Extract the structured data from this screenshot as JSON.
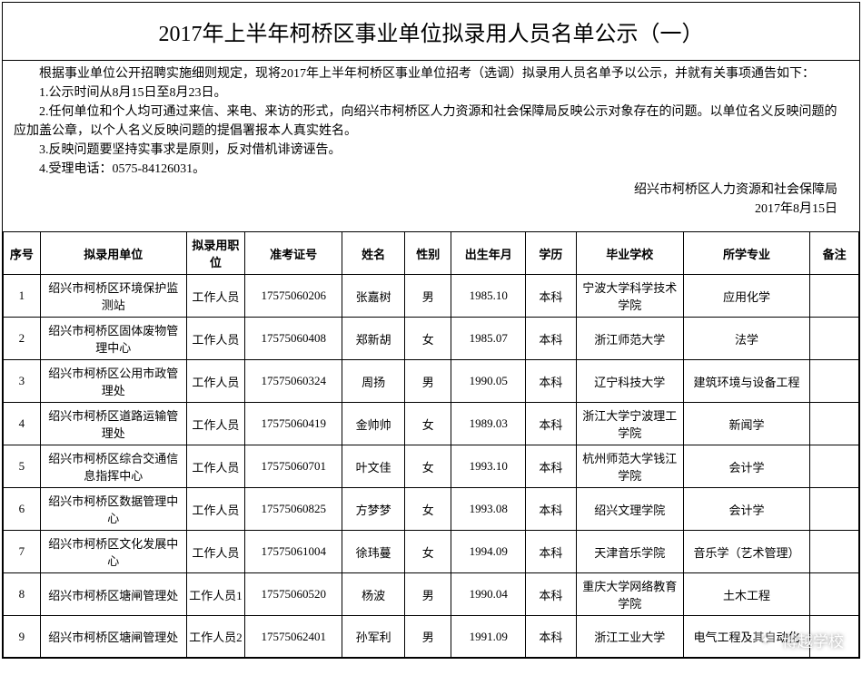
{
  "title": "2017年上半年柯桥区事业单位拟录用人员名单公示（一）",
  "intro": {
    "p0": "根据事业单位公开招聘实施细则规定，现将2017年上半年柯桥区事业单位招考（选调）拟录用人员名单予以公示，并就有关事项通告如下：",
    "p1": "1.公示时间从8月15日至8月23日。",
    "p2": "2.任何单位和个人均可通过来信、来电、来访的形式，向绍兴市柯桥区人力资源和社会保障局反映公示对象存在的问题。以单位名义反映问题的应加盖公章，以个人名义反映问题的提倡署报本人真实姓名。",
    "p3": "3.反映问题要坚持实事求是原则，反对借机诽谤诬告。",
    "p4": "4.受理电话：0575-84126031。"
  },
  "issuer": {
    "org": "绍兴市柯桥区人力资源和社会保障局",
    "date": "2017年8月15日"
  },
  "columns": [
    "序号",
    "拟录用单位",
    "拟录用职位",
    "准考证号",
    "姓名",
    "性别",
    "出生年月",
    "学历",
    "毕业学校",
    "所学专业",
    "备注"
  ],
  "rows": [
    {
      "idx": "1",
      "unit": "绍兴市柯桥区环境保护监测站",
      "pos": "工作人员",
      "exam": "17575060206",
      "name": "张嘉树",
      "sex": "男",
      "birth": "1985.10",
      "edu": "本科",
      "school": "宁波大学科学技术学院",
      "major": "应用化学",
      "note": ""
    },
    {
      "idx": "2",
      "unit": "绍兴市柯桥区固体废物管理中心",
      "pos": "工作人员",
      "exam": "17575060408",
      "name": "郑新胡",
      "sex": "女",
      "birth": "1985.07",
      "edu": "本科",
      "school": "浙江师范大学",
      "major": "法学",
      "note": ""
    },
    {
      "idx": "3",
      "unit": "绍兴市柯桥区公用市政管理处",
      "pos": "工作人员",
      "exam": "17575060324",
      "name": "周扬",
      "sex": "男",
      "birth": "1990.05",
      "edu": "本科",
      "school": "辽宁科技大学",
      "major": "建筑环境与设备工程",
      "note": ""
    },
    {
      "idx": "4",
      "unit": "绍兴市柯桥区道路运输管理处",
      "pos": "工作人员",
      "exam": "17575060419",
      "name": "金帅帅",
      "sex": "女",
      "birth": "1989.03",
      "edu": "本科",
      "school": "浙江大学宁波理工学院",
      "major": "新闻学",
      "note": ""
    },
    {
      "idx": "5",
      "unit": "绍兴市柯桥区综合交通信息指挥中心",
      "pos": "工作人员",
      "exam": "17575060701",
      "name": "叶文佳",
      "sex": "女",
      "birth": "1993.10",
      "edu": "本科",
      "school": "杭州师范大学钱江学院",
      "major": "会计学",
      "note": ""
    },
    {
      "idx": "6",
      "unit": "绍兴市柯桥区数据管理中心",
      "pos": "工作人员",
      "exam": "17575060825",
      "name": "方梦梦",
      "sex": "女",
      "birth": "1993.08",
      "edu": "本科",
      "school": "绍兴文理学院",
      "major": "会计学",
      "note": ""
    },
    {
      "idx": "7",
      "unit": "绍兴市柯桥区文化发展中心",
      "pos": "工作人员",
      "exam": "17575061004",
      "name": "徐玮蔓",
      "sex": "女",
      "birth": "1994.09",
      "edu": "本科",
      "school": "天津音乐学院",
      "major": "音乐学（艺术管理）",
      "note": ""
    },
    {
      "idx": "8",
      "unit": "绍兴市柯桥区塘闸管理处",
      "pos": "工作人员1",
      "exam": "17575060520",
      "name": "杨波",
      "sex": "男",
      "birth": "1990.04",
      "edu": "本科",
      "school": "重庆大学网络教育学院",
      "major": "土木工程",
      "note": ""
    },
    {
      "idx": "9",
      "unit": "绍兴市柯桥区塘闸管理处",
      "pos": "工作人员2",
      "exam": "17575062401",
      "name": "孙军利",
      "sex": "男",
      "birth": "1991.09",
      "edu": "本科",
      "school": "浙江工业大学",
      "major": "电气工程及其自动化",
      "note": ""
    }
  ],
  "watermark": "博越学校"
}
